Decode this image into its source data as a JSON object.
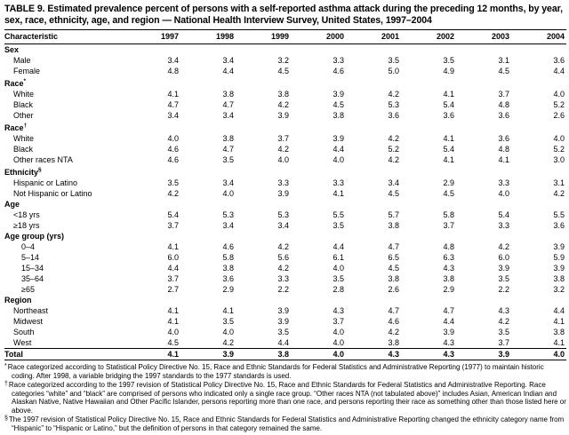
{
  "title": "TABLE 9. Estimated prevalence percent of persons with a self-reported asthma attack during the preceding 12 months, by year, sex, race, ethnicity, age, and region — National Health Interview Survey, United States, 1997–2004",
  "table": {
    "columns": [
      "Characteristic",
      "1997",
      "1998",
      "1999",
      "2000",
      "2001",
      "2002",
      "2003",
      "2004"
    ],
    "rows": [
      {
        "label": "Sex",
        "type": "group"
      },
      {
        "label": "Male",
        "type": "data",
        "indent": 1,
        "values": [
          "3.4",
          "3.4",
          "3.2",
          "3.3",
          "3.5",
          "3.5",
          "3.1",
          "3.6"
        ]
      },
      {
        "label": "Female",
        "type": "data",
        "indent": 1,
        "values": [
          "4.8",
          "4.4",
          "4.5",
          "4.6",
          "5.0",
          "4.9",
          "4.5",
          "4.4"
        ]
      },
      {
        "label": "Race",
        "sup": "*",
        "type": "group"
      },
      {
        "label": "White",
        "type": "data",
        "indent": 1,
        "values": [
          "4.1",
          "3.8",
          "3.8",
          "3.9",
          "4.2",
          "4.1",
          "3.7",
          "4.0"
        ]
      },
      {
        "label": "Black",
        "type": "data",
        "indent": 1,
        "values": [
          "4.7",
          "4.7",
          "4.2",
          "4.5",
          "5.3",
          "5.4",
          "4.8",
          "5.2"
        ]
      },
      {
        "label": "Other",
        "type": "data",
        "indent": 1,
        "values": [
          "3.4",
          "3.4",
          "3.9",
          "3.8",
          "3.6",
          "3.6",
          "3.6",
          "2.6"
        ]
      },
      {
        "label": "Race",
        "sup": "†",
        "type": "group"
      },
      {
        "label": "White",
        "type": "data",
        "indent": 1,
        "values": [
          "4.0",
          "3.8",
          "3.7",
          "3.9",
          "4.2",
          "4.1",
          "3.6",
          "4.0"
        ]
      },
      {
        "label": "Black",
        "type": "data",
        "indent": 1,
        "values": [
          "4.6",
          "4.7",
          "4.2",
          "4.4",
          "5.2",
          "5.4",
          "4.8",
          "5.2"
        ]
      },
      {
        "label": "Other races NTA",
        "type": "data",
        "indent": 1,
        "values": [
          "4.6",
          "3.5",
          "4.0",
          "4.0",
          "4.2",
          "4.1",
          "4.1",
          "3.0"
        ]
      },
      {
        "label": "Ethnicity",
        "sup": "§",
        "type": "group"
      },
      {
        "label": "Hispanic or Latino",
        "type": "data",
        "indent": 1,
        "values": [
          "3.5",
          "3.4",
          "3.3",
          "3.3",
          "3.4",
          "2.9",
          "3.3",
          "3.1"
        ]
      },
      {
        "label": "Not Hispanic or Latino",
        "type": "data",
        "indent": 1,
        "values": [
          "4.2",
          "4.0",
          "3.9",
          "4.1",
          "4.5",
          "4.5",
          "4.0",
          "4.2"
        ]
      },
      {
        "label": "Age",
        "type": "group"
      },
      {
        "label": "<18 yrs",
        "type": "data",
        "indent": 1,
        "values": [
          "5.4",
          "5.3",
          "5.3",
          "5.5",
          "5.7",
          "5.8",
          "5.4",
          "5.5"
        ]
      },
      {
        "label": "≥18 yrs",
        "type": "data",
        "indent": 1,
        "values": [
          "3.7",
          "3.4",
          "3.4",
          "3.5",
          "3.8",
          "3.7",
          "3.3",
          "3.6"
        ]
      },
      {
        "label": "Age group (yrs)",
        "type": "group"
      },
      {
        "label": "0–4",
        "type": "data",
        "indent": 2,
        "values": [
          "4.1",
          "4.6",
          "4.2",
          "4.4",
          "4.7",
          "4.8",
          "4.2",
          "3.9"
        ]
      },
      {
        "label": "5–14",
        "type": "data",
        "indent": 2,
        "values": [
          "6.0",
          "5.8",
          "5.6",
          "6.1",
          "6.5",
          "6.3",
          "6.0",
          "5.9"
        ]
      },
      {
        "label": "15–34",
        "type": "data",
        "indent": 2,
        "values": [
          "4.4",
          "3.8",
          "4.2",
          "4.0",
          "4.5",
          "4.3",
          "3.9",
          "3.9"
        ]
      },
      {
        "label": "35–64",
        "type": "data",
        "indent": 2,
        "values": [
          "3.7",
          "3.6",
          "3.3",
          "3.5",
          "3.8",
          "3.8",
          "3.5",
          "3.8"
        ]
      },
      {
        "label": "≥65",
        "type": "data",
        "indent": 2,
        "values": [
          "2.7",
          "2.9",
          "2.2",
          "2.8",
          "2.6",
          "2.9",
          "2.2",
          "3.2"
        ]
      },
      {
        "label": "Region",
        "type": "group"
      },
      {
        "label": "Northeast",
        "type": "data",
        "indent": 1,
        "values": [
          "4.1",
          "4.1",
          "3.9",
          "4.3",
          "4.7",
          "4.7",
          "4.3",
          "4.4"
        ]
      },
      {
        "label": "Midwest",
        "type": "data",
        "indent": 1,
        "values": [
          "4.1",
          "3.5",
          "3.9",
          "3.7",
          "4.6",
          "4.4",
          "4.2",
          "4.1"
        ]
      },
      {
        "label": "South",
        "type": "data",
        "indent": 1,
        "values": [
          "4.0",
          "4.0",
          "3.5",
          "4.0",
          "4.2",
          "3.9",
          "3.5",
          "3.8"
        ]
      },
      {
        "label": "West",
        "type": "data",
        "indent": 1,
        "values": [
          "4.5",
          "4.2",
          "4.4",
          "4.0",
          "3.8",
          "4.3",
          "3.7",
          "4.1"
        ]
      },
      {
        "label": "Total",
        "type": "total",
        "values": [
          "4.1",
          "3.9",
          "3.8",
          "4.0",
          "4.3",
          "4.3",
          "3.9",
          "4.0"
        ]
      }
    ]
  },
  "footnotes": [
    {
      "marker": "*",
      "text": "Race categorized according to Statistical Policy Directive No. 15, Race and Ethnic Standards for Federal Statistics and Administrative Reporting (1977) to maintain historic coding. After 1998, a variable bridging the 1997 standards to the 1977 standards is used."
    },
    {
      "marker": "†",
      "text": "Race categorized according to the 1997 revision of Statistical Policy Directive No. 15, Race and Ethnic Standards for Federal Statistics and Administrative Reporting. Race categories “white” and “black” are comprised of persons who indicated only a single race group. “Other races NTA (not tabulated above)” includes Asian, American Indian and Alaskan Native, Native Hawaiian and Other Pacific Islander, persons reporting more than one race, and persons reporting their race as something other than those listed here or above."
    },
    {
      "marker": "§",
      "text": "The 1997 revision of Statistical Policy Directive No. 15, Race and Ethnic Standards for Federal Statistics and Administrative Reporting changed the ethnicity category name from “Hispanic” to “Hispanic or Latino,” but the definition of persons in that category remained the same."
    }
  ],
  "colors": {
    "text": "#000000",
    "background": "#ffffff",
    "rule": "#000000"
  }
}
